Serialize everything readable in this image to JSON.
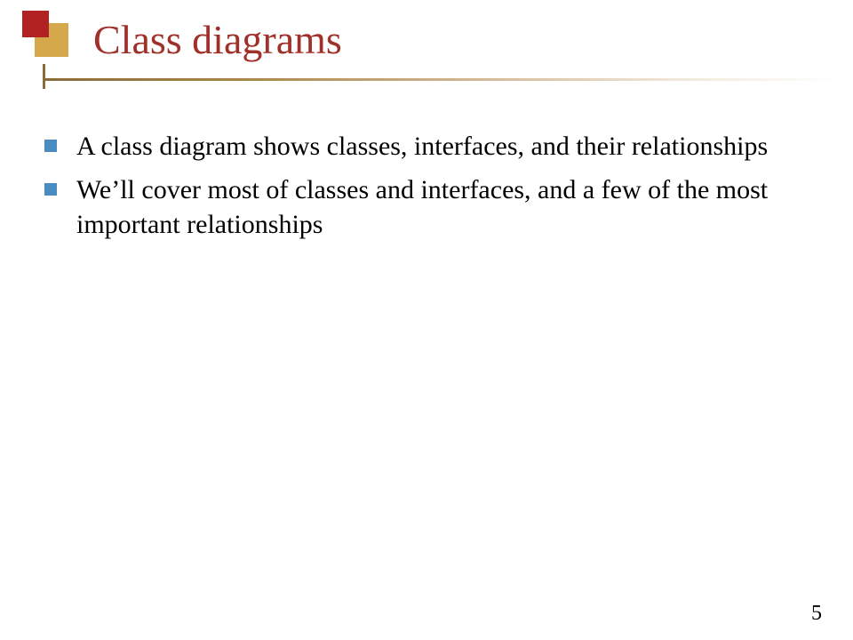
{
  "title": "Class diagrams",
  "title_color": "#a0302a",
  "title_fontsize": 46,
  "logo": {
    "square1_color": "#b22222",
    "square2_color": "#d4a84b"
  },
  "underline": {
    "gradient_start": "#8a6b3a",
    "gradient_end": "#ffffff"
  },
  "bullets": [
    {
      "text": "A class diagram shows classes, interfaces, and their relationships"
    },
    {
      "text": "We’ll cover most of classes and interfaces, and a few of the most important relationships"
    }
  ],
  "bullet_marker_color": "#4a8bc2",
  "body_fontsize": 30,
  "body_color": "#000000",
  "page_number": "5",
  "background_color": "#ffffff"
}
